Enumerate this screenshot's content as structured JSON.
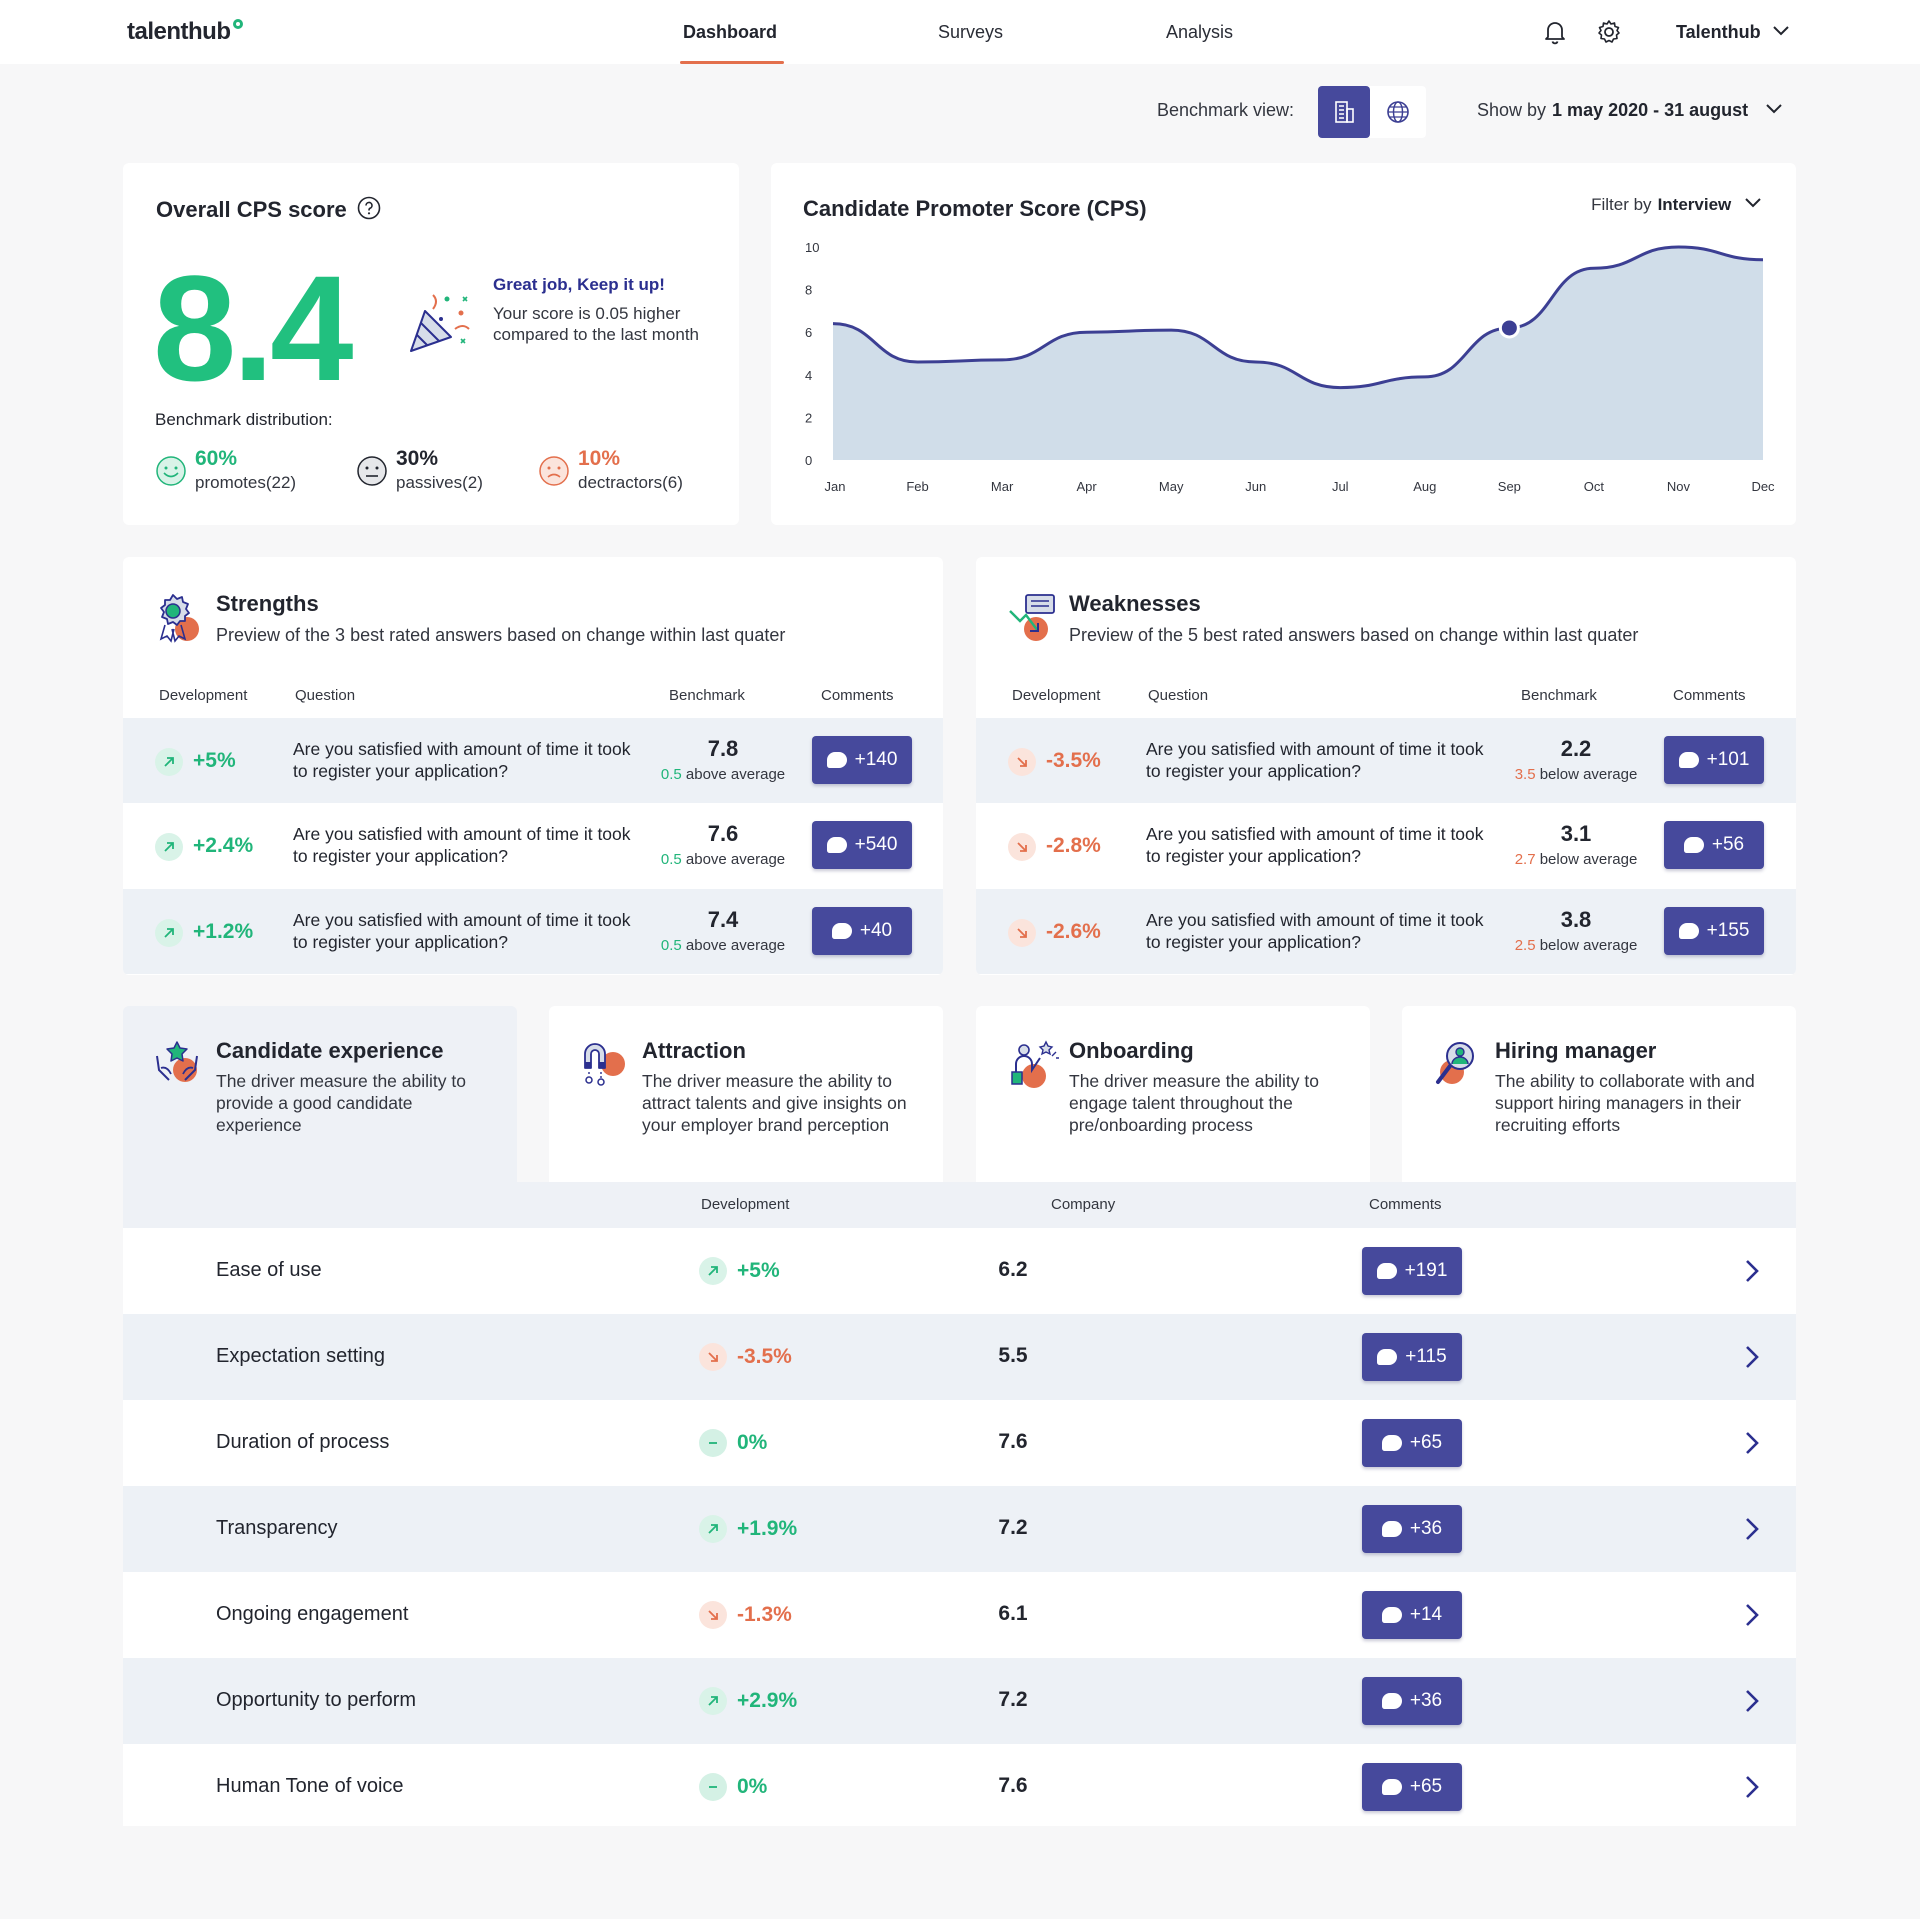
{
  "nav": {
    "logo": "talenthub",
    "tabs": [
      {
        "label": "Dashboard"
      },
      {
        "label": "Surveys"
      },
      {
        "label": "Analysis"
      }
    ],
    "account": "Talenthub"
  },
  "toolbar": {
    "benchmark_label": "Benchmark view:",
    "showby_label": "Show by",
    "date_range": "1 may 2020 - 31 august"
  },
  "overall": {
    "title": "Overall CPS score",
    "score": "8.4",
    "message_title": "Great job, Keep it up!",
    "message_body": "Your score is 0.05 higher compared to the last month",
    "distribution_label": "Benchmark distribution:",
    "distribution": [
      {
        "pct": "60%",
        "label": "promotes(22)"
      },
      {
        "pct": "30%",
        "label": "passives(2)"
      },
      {
        "pct": "10%",
        "label": "dectractors(6)"
      }
    ]
  },
  "cps_chart": {
    "title": "Candidate Promoter Score (CPS)",
    "filter_label": "Filter by",
    "filter_value": "Interview"
  },
  "chart_data": {
    "type": "area",
    "title": "Candidate Promoter Score (CPS)",
    "categories": [
      "Jan",
      "Feb",
      "Mar",
      "Apr",
      "May",
      "Jun",
      "Jul",
      "Aug",
      "Sep",
      "Oct",
      "Nov",
      "Dec"
    ],
    "values": [
      6.4,
      4.6,
      4.7,
      6.0,
      6.1,
      4.6,
      3.4,
      3.9,
      6.2,
      9.0,
      10.0,
      9.4
    ],
    "highlight_index": 8,
    "ylim": [
      0,
      10
    ],
    "yticks": [
      0,
      2,
      4,
      6,
      8,
      10
    ],
    "colors": {
      "line": "#3c3f93",
      "fill": "#d0dde9"
    }
  },
  "strengths": {
    "title": "Strengths",
    "subtitle": "Preview of the 3 best rated answers based on change within last quater",
    "headers": {
      "dev": "Development",
      "question": "Question",
      "benchmark": "Benchmark",
      "comments": "Comments"
    },
    "rows": [
      {
        "dev": "+5%",
        "question": "Are you satisfied with amount of time it took to register your application?",
        "bench": "7.8",
        "delta": "0.5",
        "delta_text": "above average",
        "comments": "+140"
      },
      {
        "dev": "+2.4%",
        "question": "Are you satisfied with amount of time it took to register your application?",
        "bench": "7.6",
        "delta": "0.5",
        "delta_text": "above average",
        "comments": "+540"
      },
      {
        "dev": "+1.2%",
        "question": "Are you satisfied with amount of time it took to register your application?",
        "bench": "7.4",
        "delta": "0.5",
        "delta_text": "above average",
        "comments": "+40"
      }
    ]
  },
  "weaknesses": {
    "title": "Weaknesses",
    "subtitle": "Preview of the 5 best rated answers based on change within last quater",
    "headers": {
      "dev": "Development",
      "question": "Question",
      "benchmark": "Benchmark",
      "comments": "Comments"
    },
    "rows": [
      {
        "dev": "-3.5%",
        "question": "Are you satisfied with amount of time it took to register your application?",
        "bench": "2.2",
        "delta": "3.5",
        "delta_text": "below average",
        "comments": "+101"
      },
      {
        "dev": "-2.8%",
        "question": "Are you satisfied with amount of time it took to register your application?",
        "bench": "3.1",
        "delta": "2.7",
        "delta_text": "below average",
        "comments": "+56"
      },
      {
        "dev": "-2.6%",
        "question": "Are you satisfied with amount of time it took to register your application?",
        "bench": "3.8",
        "delta": "2.5",
        "delta_text": "below average",
        "comments": "+155"
      }
    ]
  },
  "drivers": [
    {
      "title": "Candidate experience",
      "desc": "The driver measure the ability to provide a good candidate experience"
    },
    {
      "title": "Attraction",
      "desc": "The driver measure the ability to attract talents and give insights on your employer brand perception"
    },
    {
      "title": "Onboarding",
      "desc": "The driver measure the ability to engage talent throughout the pre/onboarding process"
    },
    {
      "title": "Hiring manager",
      "desc": "The ability to collaborate with and support hiring managers in their recruiting efforts"
    }
  ],
  "driver_table": {
    "headers": {
      "dev": "Development",
      "company": "Company",
      "comments": "Comments"
    },
    "rows": [
      {
        "name": "Ease of use",
        "dev": "+5%",
        "trend": "up",
        "company": "6.2",
        "comments": "+191"
      },
      {
        "name": "Expectation setting",
        "dev": "-3.5%",
        "trend": "down",
        "company": "5.5",
        "comments": "+115"
      },
      {
        "name": "Duration of process",
        "dev": "0%",
        "trend": "flat",
        "company": "7.6",
        "comments": "+65"
      },
      {
        "name": "Transparency",
        "dev": "+1.9%",
        "trend": "up",
        "company": "7.2",
        "comments": "+36"
      },
      {
        "name": "Ongoing engagement",
        "dev": "-1.3%",
        "trend": "down",
        "company": "6.1",
        "comments": "+14"
      },
      {
        "name": "Opportunity to perform",
        "dev": "+2.9%",
        "trend": "up",
        "company": "7.2",
        "comments": "+36"
      },
      {
        "name": "Human Tone of voice",
        "dev": "0%",
        "trend": "flat",
        "company": "7.6",
        "comments": "+65"
      }
    ]
  },
  "colors": {
    "accent": "#46499c",
    "positive": "#21b57a",
    "negative": "#e36f4c",
    "brand_underline": "#e36f4c"
  }
}
